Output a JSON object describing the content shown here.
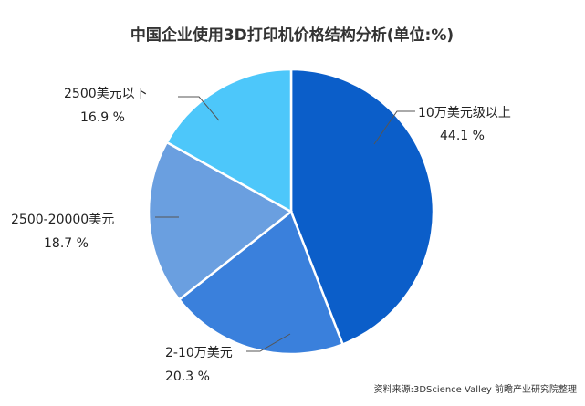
{
  "chart_data": {
    "type": "pie",
    "title": "中国企业使用3D打印机价格结构分析(单位:%)",
    "slices": [
      {
        "name": "10万美元级以上",
        "value": 44.1,
        "value_label": "44.1 %",
        "color": "#0b5ec9"
      },
      {
        "name": "2-10万美元",
        "value": 20.3,
        "value_label": "20.3 %",
        "color": "#3a80dc"
      },
      {
        "name": "2500-20000美元",
        "value": 18.7,
        "value_label": "18.7 %",
        "color": "#6a9fe0"
      },
      {
        "name": "2500美元以下",
        "value": 16.9,
        "value_label": "16.9 %",
        "color": "#4dc7fa"
      }
    ],
    "source": "资料来源:3DScience Valley 前瞻产业研究院整理"
  }
}
